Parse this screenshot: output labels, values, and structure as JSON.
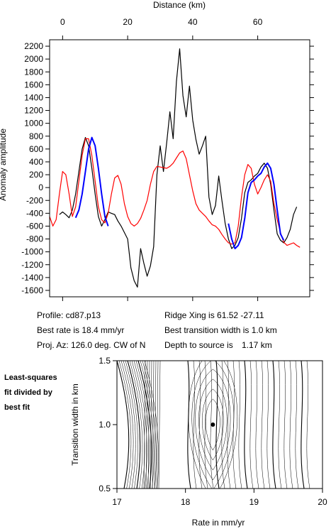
{
  "chart_data": [
    {
      "type": "line",
      "xlabel": "Distance (km)",
      "ylabel": "Anomaly amplitude",
      "x_ticks": [
        0,
        20,
        40,
        60
      ],
      "y_ticks": [
        2200,
        2000,
        1800,
        1600,
        1400,
        1200,
        1000,
        800,
        600,
        400,
        200,
        0,
        -200,
        -400,
        -600,
        -800,
        -1000,
        -1200,
        -1400,
        -1600
      ],
      "xlim": [
        -4,
        76
      ],
      "ylim": [
        -1700,
        2300
      ],
      "grid": false,
      "series": [
        {
          "color": "#000000",
          "x": [
            -1,
            0,
            1,
            2,
            3,
            4,
            5,
            6,
            7,
            8,
            9,
            10,
            11,
            12,
            13,
            14,
            15,
            16,
            17,
            18,
            19,
            20,
            21,
            22,
            23,
            24,
            25,
            26,
            27,
            28,
            29,
            30,
            31,
            32,
            33,
            34,
            35,
            36,
            37,
            38,
            39,
            40,
            41,
            42,
            43,
            44,
            45,
            46,
            47,
            48,
            49,
            50,
            51,
            52,
            53,
            54,
            55,
            56,
            57,
            58,
            59,
            60,
            61,
            62,
            63,
            64,
            65,
            66,
            67,
            68,
            69,
            70,
            71,
            72
          ],
          "values": [
            -420,
            -380,
            -420,
            -470,
            -350,
            -100,
            250,
            600,
            780,
            650,
            300,
            -100,
            -450,
            -600,
            -500,
            -380,
            -400,
            -420,
            -520,
            -600,
            -700,
            -800,
            -1250,
            -1450,
            -1550,
            -950,
            -1180,
            -1380,
            -1220,
            -920,
            200,
            650,
            250,
            700,
            1180,
            760,
            1650,
            2160,
            1430,
            1100,
            1580,
            1050,
            750,
            520,
            650,
            800,
            -150,
            -420,
            -280,
            180,
            -200,
            -560,
            -800,
            -950,
            -900,
            -780,
            -480,
            -80,
            80,
            120,
            180,
            220,
            320,
            380,
            300,
            50,
            -350,
            -720,
            -820,
            -860,
            -780,
            -650,
            -420,
            -300
          ]
        },
        {
          "color": "#ff0000",
          "x": [
            -4,
            -3,
            -2,
            -1,
            0,
            1,
            2,
            3,
            4,
            5,
            6,
            7,
            8,
            9,
            10,
            11,
            12,
            13,
            14,
            15,
            16,
            17,
            18,
            19,
            20,
            21,
            22,
            23,
            24,
            25,
            26,
            27,
            28,
            29,
            30,
            31,
            32,
            33,
            34,
            35,
            36,
            37,
            38,
            39,
            40,
            41,
            42,
            43,
            44,
            45,
            46,
            47,
            48,
            49,
            50,
            51,
            52,
            53,
            54,
            55,
            56,
            57,
            58,
            59,
            60,
            61,
            62,
            63,
            64,
            65,
            66,
            67,
            68,
            69,
            70,
            71,
            72,
            73
          ],
          "values": [
            -450,
            -600,
            -500,
            -100,
            250,
            200,
            -100,
            -450,
            -300,
            100,
            500,
            760,
            760,
            500,
            100,
            -300,
            -500,
            -550,
            -400,
            -100,
            150,
            190,
            50,
            -250,
            -450,
            -560,
            -600,
            -560,
            -480,
            -350,
            -200,
            50,
            250,
            330,
            320,
            310,
            300,
            330,
            380,
            460,
            540,
            570,
            450,
            200,
            -50,
            -250,
            -350,
            -400,
            -450,
            -520,
            -580,
            -600,
            -650,
            -730,
            -800,
            -860,
            -880,
            -860,
            -600,
            -150,
            200,
            360,
            300,
            50,
            -100,
            0,
            120,
            200,
            100,
            -250,
            -500,
            -700,
            -850,
            -900,
            -880,
            -860,
            -900,
            -930
          ]
        },
        {
          "color": "#0000ff",
          "x": [
            4,
            5,
            6,
            7,
            8,
            9,
            10,
            11,
            12,
            13,
            14
          ],
          "values": [
            -470,
            -350,
            -100,
            250,
            600,
            780,
            650,
            300,
            -100,
            -450,
            -600
          ]
        },
        {
          "color": "#0000ff",
          "x": [
            51,
            52,
            53,
            54,
            55,
            56,
            57,
            58,
            59,
            60,
            61,
            62,
            63,
            64,
            65,
            66,
            67,
            68
          ],
          "values": [
            -560,
            -800,
            -950,
            -900,
            -780,
            -480,
            -80,
            80,
            120,
            180,
            220,
            320,
            380,
            300,
            50,
            -350,
            -720,
            -820
          ]
        }
      ],
      "point_series": []
    },
    {
      "type": "heatmap",
      "title": "Least-squares fit divided by best fit",
      "xlabel": "Rate in mm/yr",
      "ylabel": "Transition width in km",
      "x_ticks": [
        17,
        18,
        19,
        20
      ],
      "y_ticks": [
        0.5,
        1.0,
        1.5
      ],
      "x_tick_labels": [
        "17",
        "18",
        "19",
        "20"
      ],
      "y_tick_labels": [
        "0.5",
        "1.0",
        "1.5"
      ],
      "xlim": [
        17,
        20
      ],
      "ylim": [
        0.5,
        1.5
      ],
      "best_fit": {
        "rate": 18.4,
        "width": 1.0
      }
    }
  ],
  "info": {
    "profile": "Profile: cd87.p13",
    "best_rate": "Best rate is 18.4 mm/yr",
    "proj_az": "Proj. Az: 126.0 deg. CW of N",
    "ridge_xing": "Ridge Xing is 61.52 -27.11",
    "best_transition": "Best transition width is 1.0 km",
    "depth_label": "Depth to source is",
    "depth_value": "1.17 km"
  }
}
